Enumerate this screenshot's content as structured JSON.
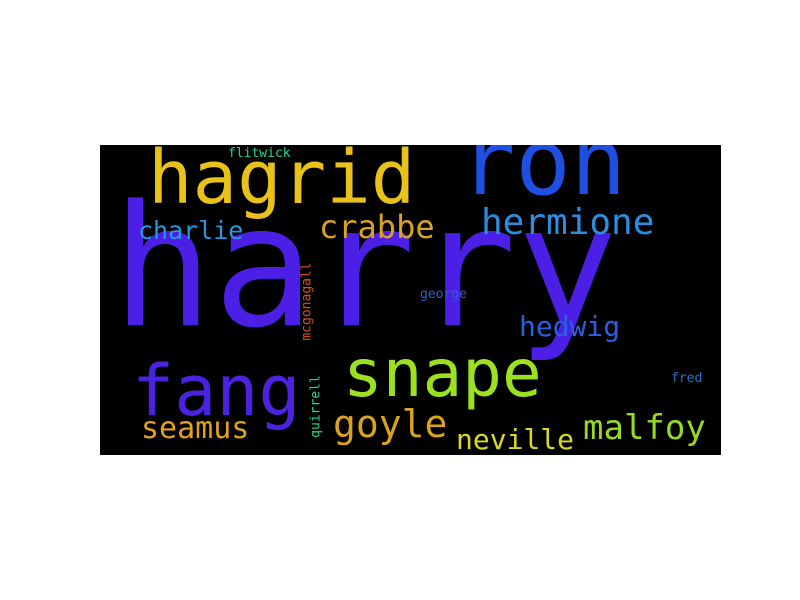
{
  "words": {
    "harry": {
      "text": "harry",
      "color": "#4b1fe6"
    },
    "ron": {
      "text": "ron",
      "color": "#1f4fe0"
    },
    "hagrid": {
      "text": "hagrid",
      "color": "#e8c21a"
    },
    "snape": {
      "text": "snape",
      "color": "#9be11f"
    },
    "fang": {
      "text": "fang",
      "color": "#4b22e0"
    },
    "hermione": {
      "text": "hermione",
      "color": "#2a8fe0"
    },
    "goyle": {
      "text": "goyle",
      "color": "#d9a21f"
    },
    "malfoy": {
      "text": "malfoy",
      "color": "#98d924"
    },
    "crabbe": {
      "text": "crabbe",
      "color": "#d9a21f"
    },
    "seamus": {
      "text": "seamus",
      "color": "#e0a020"
    },
    "neville": {
      "text": "neville",
      "color": "#d9d91f"
    },
    "hedwig": {
      "text": "hedwig",
      "color": "#2a5fe0"
    },
    "charlie": {
      "text": "charlie",
      "color": "#239ae0"
    },
    "flitwick": {
      "text": "flitwick",
      "color": "#1fd98a"
    },
    "george": {
      "text": "george",
      "color": "#2a5fd0"
    },
    "fred": {
      "text": "fred",
      "color": "#2a6fd0"
    },
    "mcgonagall": {
      "text": "mcgonagall",
      "color": "#d9521f"
    },
    "quirrell": {
      "text": "quirrell",
      "color": "#1fd98a"
    }
  },
  "background": "#000000"
}
